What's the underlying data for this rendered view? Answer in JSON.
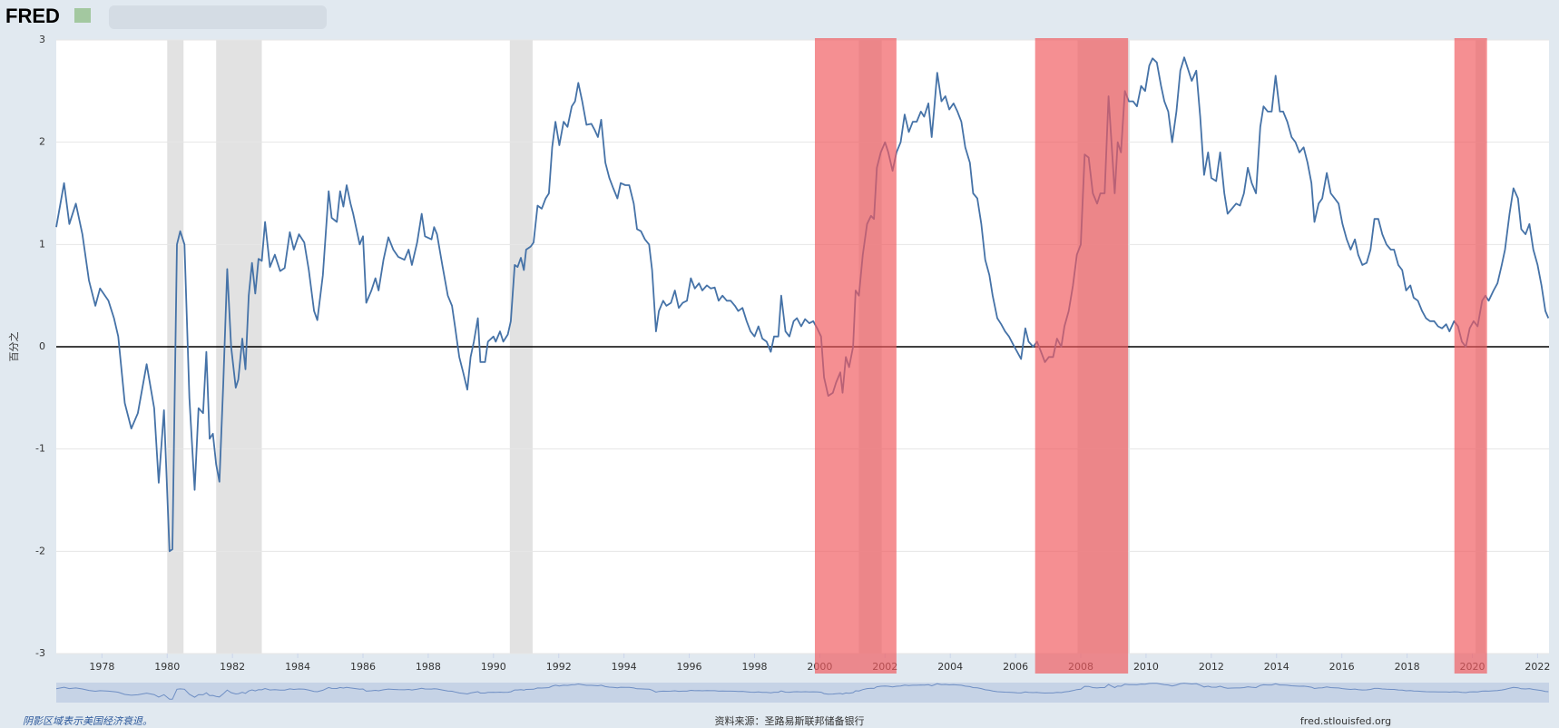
{
  "header": {
    "logo": "FRED"
  },
  "chart_data": {
    "type": "line",
    "y_label": "百分之",
    "color": "#4572a7",
    "xlim": [
      1976.6,
      2022.35
    ],
    "ylim": [
      -3,
      3
    ],
    "yticks": [
      -3,
      -2,
      -1,
      0,
      1,
      2,
      3
    ],
    "xticks": [
      1978,
      1980,
      1982,
      1984,
      1986,
      1988,
      1990,
      1992,
      1994,
      1996,
      1998,
      2000,
      2002,
      2004,
      2006,
      2008,
      2010,
      2012,
      2014,
      2016,
      2018,
      2020,
      2022
    ],
    "grid": true,
    "recessions": [
      [
        1980.0,
        1980.5
      ],
      [
        1981.5,
        1982.9
      ],
      [
        1990.5,
        1991.2
      ],
      [
        2001.2,
        2001.9
      ],
      [
        2007.9,
        2009.5
      ],
      [
        2020.1,
        2020.4
      ]
    ],
    "recession_color": "#e2e2e2",
    "highlights": [
      [
        1999.85,
        2002.35
      ],
      [
        2006.6,
        2009.45
      ],
      [
        2019.45,
        2020.45
      ]
    ],
    "highlight_color": "#f05a5f",
    "x": [
      1976.6,
      1976.84,
      1977.0,
      1977.2,
      1977.4,
      1977.6,
      1977.8,
      1977.94,
      1978.2,
      1978.37,
      1978.5,
      1978.7,
      1978.9,
      1979.1,
      1979.37,
      1979.6,
      1979.74,
      1979.9,
      1980.07,
      1980.16,
      1980.3,
      1980.4,
      1980.53,
      1980.68,
      1980.84,
      1980.96,
      1981.1,
      1981.2,
      1981.3,
      1981.4,
      1981.5,
      1981.6,
      1981.72,
      1981.84,
      1981.96,
      1982.1,
      1982.18,
      1982.3,
      1982.4,
      1982.5,
      1982.6,
      1982.7,
      1982.8,
      1982.9,
      1983.0,
      1983.15,
      1983.3,
      1983.46,
      1983.6,
      1983.76,
      1983.88,
      1984.04,
      1984.2,
      1984.34,
      1984.5,
      1984.6,
      1984.77,
      1984.95,
      1985.04,
      1985.2,
      1985.3,
      1985.4,
      1985.5,
      1985.62,
      1985.7,
      1985.9,
      1986.0,
      1986.1,
      1986.26,
      1986.38,
      1986.48,
      1986.63,
      1986.78,
      1986.93,
      1987.08,
      1987.27,
      1987.4,
      1987.5,
      1987.66,
      1987.8,
      1987.9,
      1988.1,
      1988.18,
      1988.27,
      1988.43,
      1988.6,
      1988.73,
      1988.82,
      1988.95,
      1989.07,
      1989.2,
      1989.3,
      1989.4,
      1989.52,
      1989.6,
      1989.74,
      1989.83,
      1990.0,
      1990.07,
      1990.2,
      1990.3,
      1990.44,
      1990.53,
      1990.65,
      1990.74,
      1990.84,
      1990.93,
      1991.0,
      1991.14,
      1991.23,
      1991.35,
      1991.48,
      1991.6,
      1991.7,
      1991.8,
      1991.9,
      1992.02,
      1992.15,
      1992.27,
      1992.4,
      1992.5,
      1992.6,
      1992.72,
      1992.85,
      1993.0,
      1993.1,
      1993.2,
      1993.3,
      1993.43,
      1993.55,
      1993.67,
      1993.8,
      1993.9,
      1994.04,
      1994.16,
      1994.3,
      1994.4,
      1994.52,
      1994.64,
      1994.77,
      1994.86,
      1994.98,
      1995.07,
      1995.2,
      1995.3,
      1995.44,
      1995.56,
      1995.68,
      1995.8,
      1995.93,
      1996.05,
      1996.17,
      1996.3,
      1996.4,
      1996.54,
      1996.66,
      1996.78,
      1996.9,
      1997.02,
      1997.15,
      1997.27,
      1997.4,
      1997.5,
      1997.63,
      1997.76,
      1997.88,
      1998.0,
      1998.12,
      1998.24,
      1998.37,
      1998.5,
      1998.6,
      1998.73,
      1998.82,
      1998.95,
      1999.07,
      1999.2,
      1999.3,
      1999.43,
      1999.55,
      1999.68,
      1999.8,
      1999.92,
      2000.04,
      2000.13,
      2000.26,
      2000.4,
      2000.5,
      2000.63,
      2000.7,
      2000.8,
      2000.9,
      2001.02,
      2001.1,
      2001.2,
      2001.32,
      2001.45,
      2001.57,
      2001.66,
      2001.75,
      2001.87,
      2002.0,
      2002.1,
      2002.23,
      2002.35,
      2002.48,
      2002.6,
      2002.73,
      2002.85,
      2002.97,
      2003.1,
      2003.2,
      2003.33,
      2003.43,
      2003.5,
      2003.6,
      2003.73,
      2003.85,
      2003.97,
      2004.1,
      2004.22,
      2004.34,
      2004.46,
      2004.6,
      2004.7,
      2004.83,
      2004.95,
      2005.07,
      2005.2,
      2005.3,
      2005.44,
      2005.56,
      2005.68,
      2005.8,
      2005.93,
      2006.05,
      2006.17,
      2006.3,
      2006.4,
      2006.54,
      2006.66,
      2006.78,
      2006.9,
      2007.02,
      2007.15,
      2007.27,
      2007.4,
      2007.5,
      2007.63,
      2007.76,
      2007.88,
      2008.0,
      2008.12,
      2008.24,
      2008.37,
      2008.5,
      2008.6,
      2008.73,
      2008.85,
      2008.95,
      2009.04,
      2009.13,
      2009.23,
      2009.35,
      2009.47,
      2009.6,
      2009.72,
      2009.85,
      2009.97,
      2010.1,
      2010.2,
      2010.33,
      2010.46,
      2010.56,
      2010.68,
      2010.8,
      2010.93,
      2011.05,
      2011.17,
      2011.3,
      2011.4,
      2011.54,
      2011.66,
      2011.78,
      2011.9,
      2012.0,
      2012.15,
      2012.27,
      2012.4,
      2012.5,
      2012.63,
      2012.76,
      2012.88,
      2013.0,
      2013.12,
      2013.24,
      2013.37,
      2013.5,
      2013.6,
      2013.73,
      2013.85,
      2013.97,
      2014.1,
      2014.2,
      2014.33,
      2014.46,
      2014.58,
      2014.7,
      2014.83,
      2014.95,
      2015.07,
      2015.16,
      2015.29,
      2015.4,
      2015.54,
      2015.66,
      2015.78,
      2015.9,
      2016.02,
      2016.15,
      2016.27,
      2016.4,
      2016.5,
      2016.63,
      2016.76,
      2016.88,
      2017.0,
      2017.12,
      2017.24,
      2017.37,
      2017.5,
      2017.6,
      2017.73,
      2017.85,
      2017.97,
      2018.1,
      2018.2,
      2018.33,
      2018.46,
      2018.58,
      2018.7,
      2018.83,
      2018.95,
      2019.07,
      2019.2,
      2019.3,
      2019.44,
      2019.56,
      2019.68,
      2019.8,
      2019.92,
      2020.04,
      2020.16,
      2020.3,
      2020.4,
      2020.5,
      2020.65,
      2020.77,
      2020.9,
      2021.0,
      2021.14,
      2021.26,
      2021.4,
      2021.5,
      2021.63,
      2021.75,
      2021.87,
      2022.0,
      2022.12,
      2022.24,
      2022.33
    ],
    "values": [
      1.17,
      1.6,
      1.2,
      1.4,
      1.1,
      0.65,
      0.4,
      0.57,
      0.45,
      0.28,
      0.1,
      -0.55,
      -0.8,
      -0.65,
      -0.17,
      -0.6,
      -1.33,
      -0.62,
      -2.0,
      -1.98,
      1.0,
      1.13,
      1.0,
      -0.5,
      -1.4,
      -0.6,
      -0.65,
      -0.05,
      -0.9,
      -0.85,
      -1.15,
      -1.32,
      -0.35,
      0.76,
      0.0,
      -0.4,
      -0.32,
      0.08,
      -0.22,
      0.5,
      0.82,
      0.52,
      0.86,
      0.84,
      1.22,
      0.78,
      0.9,
      0.74,
      0.77,
      1.12,
      0.95,
      1.1,
      1.02,
      0.75,
      0.35,
      0.26,
      0.7,
      1.52,
      1.26,
      1.22,
      1.52,
      1.37,
      1.58,
      1.4,
      1.3,
      1.0,
      1.08,
      0.43,
      0.55,
      0.67,
      0.55,
      0.85,
      1.07,
      0.95,
      0.88,
      0.85,
      0.95,
      0.8,
      1.02,
      1.3,
      1.08,
      1.05,
      1.17,
      1.1,
      0.8,
      0.5,
      0.4,
      0.2,
      -0.1,
      -0.25,
      -0.42,
      -0.1,
      0.05,
      0.28,
      -0.15,
      -0.15,
      0.05,
      0.1,
      0.05,
      0.15,
      0.05,
      0.12,
      0.25,
      0.8,
      0.78,
      0.87,
      0.75,
      0.95,
      0.98,
      1.02,
      1.38,
      1.35,
      1.45,
      1.5,
      1.95,
      2.2,
      1.97,
      2.2,
      2.15,
      2.35,
      2.4,
      2.58,
      2.4,
      2.17,
      2.18,
      2.12,
      2.05,
      2.22,
      1.8,
      1.65,
      1.55,
      1.45,
      1.6,
      1.58,
      1.58,
      1.4,
      1.15,
      1.13,
      1.05,
      1.0,
      0.75,
      0.15,
      0.35,
      0.45,
      0.4,
      0.43,
      0.55,
      0.38,
      0.43,
      0.45,
      0.67,
      0.57,
      0.62,
      0.55,
      0.6,
      0.57,
      0.58,
      0.45,
      0.5,
      0.45,
      0.45,
      0.4,
      0.35,
      0.38,
      0.25,
      0.15,
      0.1,
      0.2,
      0.08,
      0.05,
      -0.05,
      0.1,
      0.1,
      0.5,
      0.15,
      0.1,
      0.25,
      0.28,
      0.2,
      0.27,
      0.23,
      0.25,
      0.18,
      0.1,
      -0.3,
      -0.48,
      -0.45,
      -0.35,
      -0.25,
      -0.45,
      -0.1,
      -0.2,
      0.0,
      0.55,
      0.5,
      0.9,
      1.2,
      1.28,
      1.25,
      1.75,
      1.9,
      2.0,
      1.9,
      1.72,
      1.9,
      2.0,
      2.27,
      2.1,
      2.2,
      2.2,
      2.3,
      2.25,
      2.38,
      2.05,
      2.3,
      2.68,
      2.4,
      2.45,
      2.32,
      2.38,
      2.3,
      2.2,
      1.95,
      1.8,
      1.5,
      1.45,
      1.2,
      0.85,
      0.7,
      0.5,
      0.28,
      0.22,
      0.15,
      0.1,
      0.02,
      -0.05,
      -0.12,
      0.18,
      0.05,
      0.0,
      0.05,
      -0.05,
      -0.15,
      -0.1,
      -0.1,
      0.08,
      0.0,
      0.2,
      0.35,
      0.6,
      0.9,
      1.0,
      1.88,
      1.85,
      1.5,
      1.4,
      1.5,
      1.5,
      2.45,
      1.95,
      1.5,
      2.0,
      1.9,
      2.5,
      2.4,
      2.4,
      2.35,
      2.55,
      2.5,
      2.75,
      2.82,
      2.78,
      2.55,
      2.4,
      2.3,
      2.0,
      2.3,
      2.7,
      2.83,
      2.7,
      2.6,
      2.7,
      2.25,
      1.68,
      1.9,
      1.65,
      1.62,
      1.9,
      1.5,
      1.3,
      1.35,
      1.4,
      1.38,
      1.5,
      1.75,
      1.6,
      1.5,
      2.15,
      2.35,
      2.3,
      2.3,
      2.65,
      2.3,
      2.3,
      2.2,
      2.05,
      2.0,
      1.9,
      1.95,
      1.8,
      1.6,
      1.22,
      1.4,
      1.45,
      1.7,
      1.5,
      1.45,
      1.4,
      1.2,
      1.05,
      0.95,
      1.05,
      0.9,
      0.8,
      0.82,
      0.95,
      1.25,
      1.25,
      1.1,
      1.0,
      0.95,
      0.95,
      0.8,
      0.75,
      0.55,
      0.6,
      0.48,
      0.45,
      0.35,
      0.28,
      0.25,
      0.25,
      0.2,
      0.18,
      0.22,
      0.15,
      0.25,
      0.2,
      0.05,
      0.0,
      0.18,
      0.25,
      0.2,
      0.45,
      0.5,
      0.45,
      0.55,
      0.62,
      0.8,
      0.95,
      1.3,
      1.55,
      1.45,
      1.15,
      1.1,
      1.2,
      0.95,
      0.8,
      0.6,
      0.35,
      0.28
    ]
  },
  "footer": {
    "note": "阴影区域表示美国经济衰退。",
    "source": "资料来源：圣路易斯联邦储备银行",
    "url": "fred.stlouisfed.org"
  }
}
